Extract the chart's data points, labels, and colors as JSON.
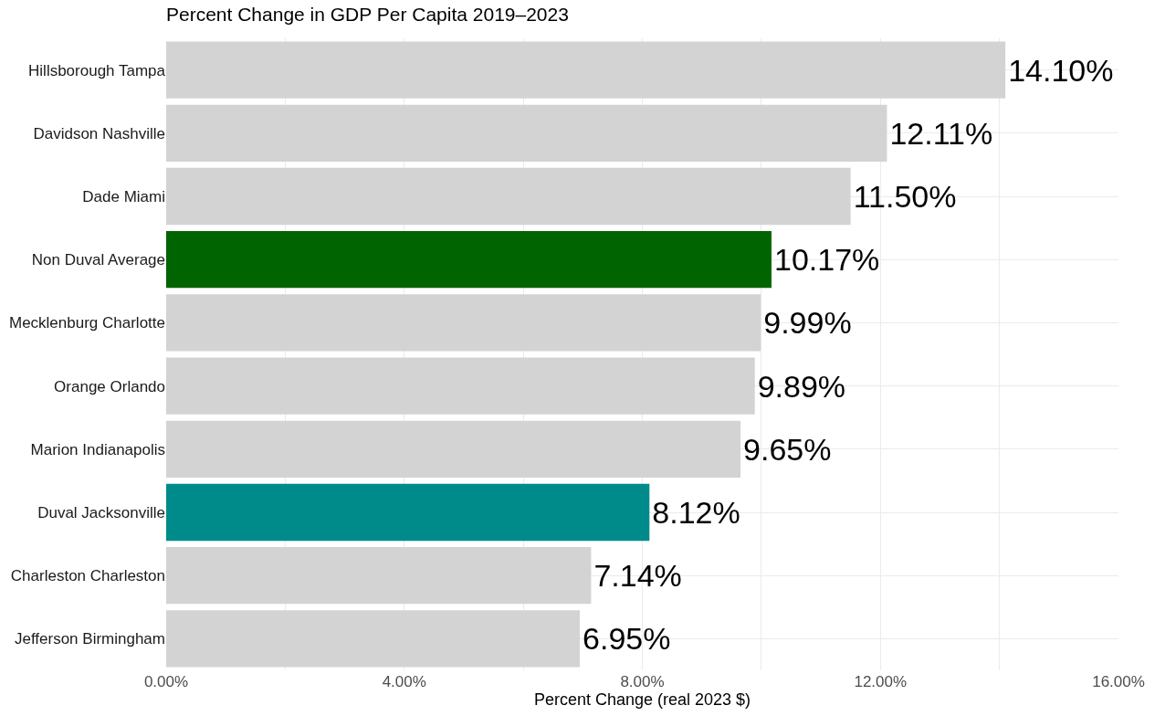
{
  "chart_data": {
    "type": "bar",
    "orientation": "horizontal",
    "title": "Percent Change in GDP Per Capita 2019–2023",
    "xlabel": "Percent Change (real 2023 $)",
    "categories": [
      "Hillsborough Tampa",
      "Davidson Nashville",
      "Dade Miami",
      "Non Duval Average",
      "Mecklenburg Charlotte",
      "Orange Orlando",
      "Marion Indianapolis",
      "Duval Jacksonville",
      "Charleston Charleston",
      "Jefferson Birmingham"
    ],
    "values": [
      14.1,
      12.11,
      11.5,
      10.17,
      9.99,
      9.89,
      9.65,
      8.12,
      7.14,
      6.95
    ],
    "value_labels": [
      "14.10%",
      "12.11%",
      "11.50%",
      "10.17%",
      "9.99%",
      "9.89%",
      "9.65%",
      "8.12%",
      "7.14%",
      "6.95%"
    ],
    "colors": [
      "#d3d3d3",
      "#d3d3d3",
      "#d3d3d3",
      "#006400",
      "#d3d3d3",
      "#d3d3d3",
      "#d3d3d3",
      "#008b8b",
      "#d3d3d3",
      "#d3d3d3"
    ],
    "xlim": [
      0,
      16
    ],
    "xticks": [
      {
        "value": 0,
        "label": "0.00%"
      },
      {
        "value": 2,
        "label": null
      },
      {
        "value": 4,
        "label": "4.00%"
      },
      {
        "value": 6,
        "label": null
      },
      {
        "value": 8,
        "label": "8.00%"
      },
      {
        "value": 10,
        "label": null
      },
      {
        "value": 12,
        "label": "12.00%"
      },
      {
        "value": 14,
        "label": null
      },
      {
        "value": 16,
        "label": "16.00%"
      }
    ],
    "grid": true,
    "legend": false
  }
}
